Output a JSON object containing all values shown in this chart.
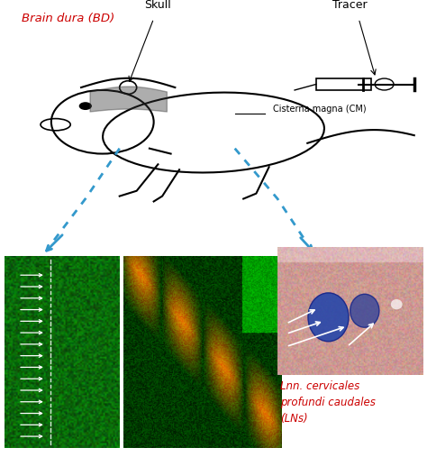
{
  "skull_label": "Skull",
  "tracer_label": "Tracer",
  "cisterna_magna_label": "Cisterna magna (CM)",
  "brain_dura_label": "Brain dura (BD)",
  "lnn_label": "Lnn. cervicales\nprofundi caudales\n(LNs)",
  "bg_color": "#ffffff",
  "label_color_red": "#cc0000",
  "label_color_black": "#000000",
  "arrow_color_blue": "#3399cc",
  "fig_width": 4.74,
  "fig_height": 5.07,
  "dpi": 100
}
